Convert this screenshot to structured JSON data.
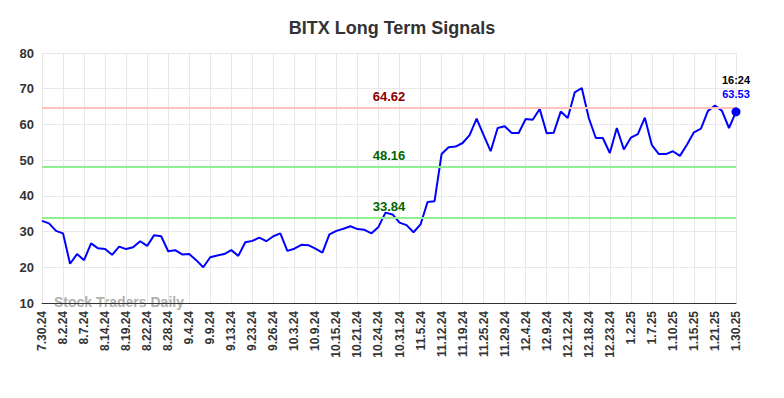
{
  "chart_data": {
    "type": "line",
    "title": "BITX Long Term Signals",
    "categories": [
      "7.30.24",
      null,
      null,
      "8.2.24",
      null,
      null,
      "8.7.24",
      null,
      null,
      "8.14.24",
      null,
      null,
      "8.19.24",
      null,
      null,
      "8.22.24",
      null,
      null,
      "8.28.24",
      null,
      null,
      "9.4.24",
      null,
      null,
      "9.9.24",
      null,
      null,
      "9.13.24",
      null,
      null,
      "9.23.24",
      null,
      null,
      "9.26.24",
      null,
      null,
      "10.3.24",
      null,
      null,
      "10.9.24",
      null,
      null,
      "10.15.24",
      null,
      null,
      "10.21.24",
      null,
      null,
      "10.24.24",
      null,
      null,
      "10.31.24",
      null,
      null,
      "11.5.24",
      null,
      null,
      "11.12.24",
      null,
      null,
      "11.19.24",
      null,
      null,
      "11.25.24",
      null,
      null,
      "11.29.24",
      null,
      null,
      "12.4.24",
      null,
      null,
      "12.9.24",
      null,
      null,
      "12.12.24",
      null,
      null,
      "12.18.24",
      null,
      null,
      "12.23.24",
      null,
      null,
      "1.2.25",
      null,
      null,
      "1.7.25",
      null,
      null,
      "1.10.25",
      null,
      null,
      "1.15.25",
      null,
      null,
      "1.21.25",
      null,
      null,
      "1.30.25"
    ],
    "values": [
      33,
      32.3,
      30.2,
      29.5,
      21,
      23.7,
      22,
      26.7,
      25.3,
      25.1,
      23.5,
      25.8,
      25.1,
      25.6,
      27.3,
      26,
      29,
      28.7,
      24.5,
      24.8,
      23.6,
      23.7,
      22,
      20,
      22.8,
      23.3,
      23.7,
      24.8,
      23.2,
      27,
      27.4,
      28.3,
      27.3,
      28.7,
      29.5,
      24.6,
      25.2,
      26.3,
      26.2,
      25.2,
      24.1,
      29.2,
      30.2,
      30.8,
      31.5,
      30.7,
      30.5,
      29.5,
      31.3,
      35.3,
      34.8,
      32.5,
      31.8,
      29.8,
      32,
      38.3,
      38.5,
      51.7,
      53.6,
      53.8,
      54.8,
      57,
      61.6,
      57,
      52.5,
      59,
      59.5,
      57.6,
      57.6,
      61.5,
      61.3,
      64.3,
      57.5,
      57.7,
      63.6,
      61.8,
      69,
      70.2,
      61.8,
      56.2,
      56.2,
      52,
      59,
      53,
      56.3,
      57.3,
      61.9,
      54.2,
      51.7,
      51.7,
      52.5,
      51.2,
      54.3,
      57.8,
      58.8,
      63.8,
      65.3,
      63.8,
      59,
      63.53
    ],
    "color": "#0000ff",
    "ylim": [
      10,
      80
    ],
    "yticks": [
      10,
      20,
      30,
      40,
      50,
      60,
      70,
      80
    ],
    "grid": true,
    "levels": [
      {
        "value": 64.62,
        "label": "64.62",
        "color": "#ffc0c0",
        "label_color": "#8b0000"
      },
      {
        "value": 48.16,
        "label": "48.16",
        "color": "#90ee90",
        "label_color": "#006400"
      },
      {
        "value": 33.84,
        "label": "33.84",
        "color": "#90ee90",
        "label_color": "#006400"
      }
    ],
    "last_point": {
      "time": "16:24",
      "value": 63.53,
      "label": "63.53"
    },
    "watermark": "Stock Traders Daily"
  }
}
